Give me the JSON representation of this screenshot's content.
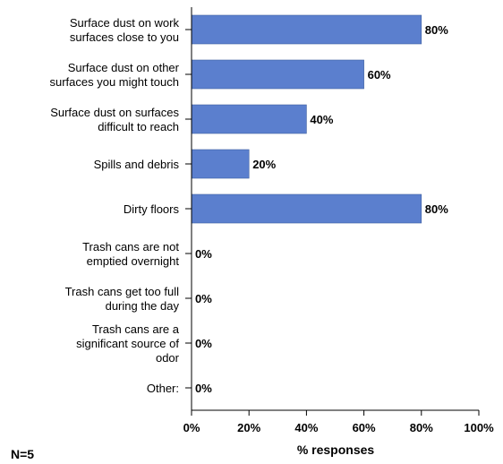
{
  "chart_data": {
    "type": "bar",
    "orientation": "horizontal",
    "categories": [
      [
        "Surface dust on work",
        "surfaces close to you"
      ],
      [
        "Surface dust on other",
        "surfaces you might touch"
      ],
      [
        "Surface dust on surfaces",
        "difficult to reach"
      ],
      [
        "Spills and debris"
      ],
      [
        "Dirty floors"
      ],
      [
        "Trash cans are not",
        "emptied overnight"
      ],
      [
        "Trash cans get too full",
        "during the day"
      ],
      [
        "Trash cans are a",
        "significant source of",
        "odor"
      ],
      [
        "Other:"
      ]
    ],
    "values": [
      80,
      60,
      40,
      20,
      80,
      0,
      0,
      0,
      0
    ],
    "value_labels": [
      "80%",
      "60%",
      "40%",
      "20%",
      "80%",
      "0%",
      "0%",
      "0%",
      "0%"
    ],
    "xlim": [
      0,
      100
    ],
    "xticks": [
      0,
      20,
      40,
      60,
      80,
      100
    ],
    "xtick_labels": [
      "0%",
      "20%",
      "40%",
      "60%",
      "80%",
      "100%"
    ],
    "xlabel": "% responses",
    "ylabel": "",
    "title": "",
    "grid": false,
    "bar_color": "#5b7fce",
    "bar_edge_color": "#3f5f9f"
  },
  "footnote": "N=5"
}
